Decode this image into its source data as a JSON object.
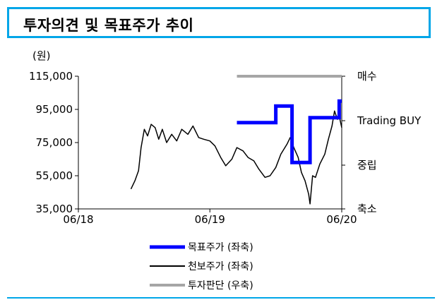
{
  "header": {
    "title": "투자의견 및 목표주가 추이"
  },
  "chart_data": {
    "type": "line",
    "unit_label": "(원)",
    "x_ticks": [
      "06/18",
      "06/19",
      "06/20"
    ],
    "y_left": {
      "min": 35000,
      "max": 115000,
      "ticks": [
        "115,000",
        "95,000",
        "75,000",
        "55,000",
        "35,000"
      ]
    },
    "y_right": {
      "ticks": [
        "매수",
        "Trading BUY",
        "중립",
        "축소"
      ]
    },
    "colors": {
      "target": "#0000ff",
      "price": "#000000",
      "opinion": "#a6a6a6"
    },
    "series": [
      {
        "name": "목표주가 (좌축)",
        "points": [
          [
            "2019-08-15",
            87000
          ],
          [
            "2019-12-01",
            87000
          ],
          [
            "2019-12-01",
            97000
          ],
          [
            "2020-01-15",
            97000
          ],
          [
            "2020-01-15",
            63000
          ],
          [
            "2020-03-05",
            63000
          ],
          [
            "2020-03-05",
            90000
          ],
          [
            "2020-05-25",
            90000
          ],
          [
            "2020-05-25",
            100000
          ],
          [
            "2020-06-01",
            100000
          ]
        ]
      },
      {
        "name": "천보주가 (좌축)",
        "points": [
          [
            "2018-10-25",
            47000
          ],
          [
            "2018-11-05",
            52000
          ],
          [
            "2018-11-15",
            58000
          ],
          [
            "2018-11-22",
            72000
          ],
          [
            "2018-12-01",
            83000
          ],
          [
            "2018-12-10",
            79000
          ],
          [
            "2018-12-20",
            86000
          ],
          [
            "2018-12-31",
            84000
          ],
          [
            "2019-01-10",
            77000
          ],
          [
            "2019-01-20",
            83000
          ],
          [
            "2019-02-01",
            75000
          ],
          [
            "2019-02-15",
            80000
          ],
          [
            "2019-03-01",
            76000
          ],
          [
            "2019-03-15",
            83000
          ],
          [
            "2019-04-01",
            80000
          ],
          [
            "2019-04-15",
            85000
          ],
          [
            "2019-05-01",
            78000
          ],
          [
            "2019-05-15",
            77000
          ],
          [
            "2019-06-01",
            76000
          ],
          [
            "2019-06-15",
            73000
          ],
          [
            "2019-07-01",
            66000
          ],
          [
            "2019-07-15",
            61000
          ],
          [
            "2019-08-01",
            65000
          ],
          [
            "2019-08-15",
            72000
          ],
          [
            "2019-09-01",
            70000
          ],
          [
            "2019-09-15",
            66000
          ],
          [
            "2019-10-01",
            64000
          ],
          [
            "2019-10-15",
            59000
          ],
          [
            "2019-11-01",
            54000
          ],
          [
            "2019-11-15",
            55000
          ],
          [
            "2019-12-01",
            60000
          ],
          [
            "2019-12-15",
            68000
          ],
          [
            "2020-01-01",
            74000
          ],
          [
            "2020-01-10",
            78000
          ],
          [
            "2020-01-20",
            72000
          ],
          [
            "2020-02-01",
            66000
          ],
          [
            "2020-02-10",
            57000
          ],
          [
            "2020-02-20",
            52000
          ],
          [
            "2020-03-01",
            44000
          ],
          [
            "2020-03-05",
            38000
          ],
          [
            "2020-03-12",
            55000
          ],
          [
            "2020-03-20",
            54000
          ],
          [
            "2020-04-01",
            62000
          ],
          [
            "2020-04-15",
            68000
          ],
          [
            "2020-04-25",
            77000
          ],
          [
            "2020-05-05",
            85000
          ],
          [
            "2020-05-12",
            94000
          ],
          [
            "2020-05-20",
            89000
          ],
          [
            "2020-05-25",
            91000
          ],
          [
            "2020-06-01",
            84000
          ]
        ]
      },
      {
        "name": "투자판단 (우축)",
        "points": [
          [
            "2019-08-15",
            "매수"
          ],
          [
            "2020-06-01",
            "매수"
          ]
        ]
      }
    ]
  }
}
